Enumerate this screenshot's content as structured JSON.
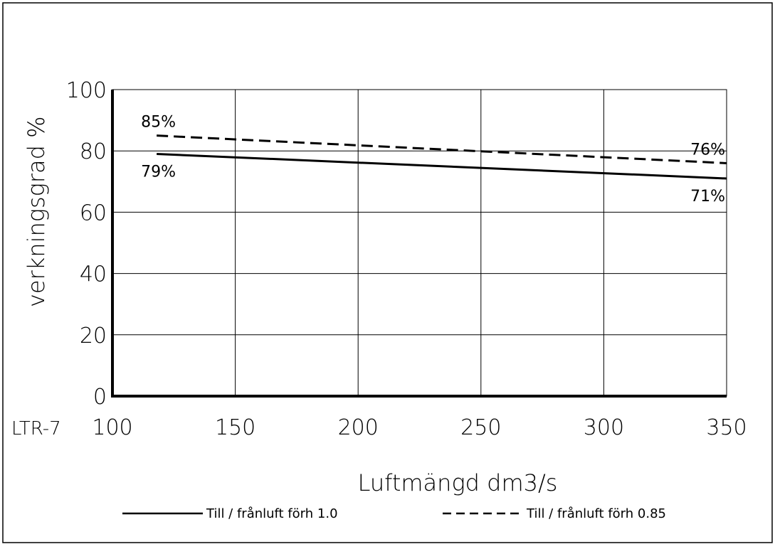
{
  "chart_data": {
    "type": "line",
    "model_label": "LTR-7",
    "xlabel": "Luftmängd dm3/s",
    "ylabel": "verkningsgrad %",
    "xlim": [
      100,
      350
    ],
    "ylim": [
      0,
      100
    ],
    "x_ticks": [
      "100",
      "150",
      "200",
      "250",
      "300",
      "350"
    ],
    "y_ticks": [
      "0",
      "20",
      "40",
      "60",
      "80",
      "100"
    ],
    "grid": true,
    "legend_position": "bottom",
    "series": [
      {
        "name": "Till / frånluft förh 1.0",
        "style": "solid",
        "color": "#000000",
        "x": [
          118,
          350
        ],
        "y": [
          79,
          71
        ],
        "labels": [
          "79%",
          "71%"
        ]
      },
      {
        "name": "Till / frånluft förh 0.85",
        "style": "dashed",
        "color": "#000000",
        "x": [
          118,
          350
        ],
        "y": [
          85,
          76
        ],
        "labels": [
          "85%",
          "76%"
        ]
      }
    ]
  }
}
